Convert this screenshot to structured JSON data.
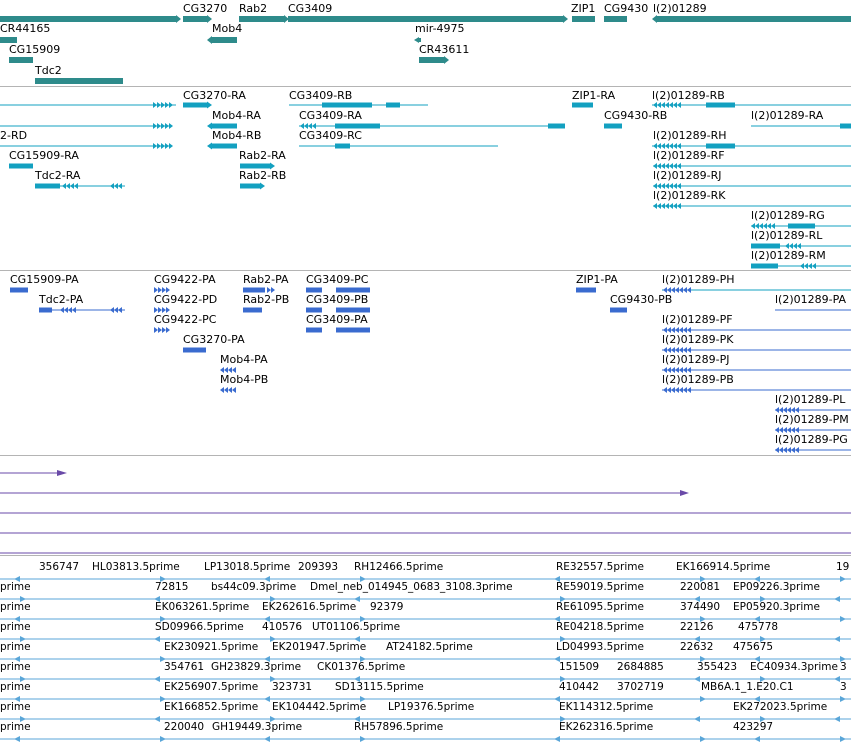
{
  "colors": {
    "gene": "#2e8b8b",
    "transcript": "#13a0c0",
    "protein": "#3a6bcf",
    "alignment": "#6a4aa8",
    "est": "#5aa6d8",
    "separator": "#b4b4b4"
  },
  "tracks": {
    "genes": {
      "name": "genes-track",
      "labels": [
        "CG3270",
        "Rab2",
        "CG3409",
        "ZIP1",
        "CG9430",
        "l(2)01289",
        "CR44165",
        "Mob4",
        "mir-4975",
        "CG15909",
        "CR43611",
        "Tdc2"
      ]
    },
    "transcripts": {
      "name": "transcripts-track",
      "labels": [
        "CG3270-RA",
        "CG3409-RB",
        "ZIP1-RA",
        "l(2)01289-RB",
        "Mob4-RA",
        "CG3409-RA",
        "CG9430-RB",
        "l(2)01289-RA",
        "2-RD",
        "Mob4-RB",
        "CG3409-RC",
        "l(2)01289-RH",
        "CG15909-RA",
        "Rab2-RA",
        "l(2)01289-RF",
        "Tdc2-RA",
        "Rab2-RB",
        "l(2)01289-RJ",
        "l(2)01289-RK",
        "l(2)01289-RG",
        "l(2)01289-RL",
        "l(2)01289-RM"
      ]
    },
    "proteins": {
      "name": "proteins-track",
      "labels": [
        "CG15909-PA",
        "CG9422-PA",
        "Rab2-PA",
        "CG3409-PC",
        "ZIP1-PA",
        "l(2)01289-PH",
        "Tdc2-PA",
        "CG9422-PD",
        "Rab2-PB",
        "CG3409-PB",
        "CG9430-PB",
        "l(2)01289-PA",
        "CG9422-PC",
        "CG3409-PA",
        "l(2)01289-PF",
        "CG3270-PA",
        "l(2)01289-PK",
        "Mob4-PA",
        "l(2)01289-PJ",
        "Mob4-PB",
        "l(2)01289-PB",
        "l(2)01289-PL",
        "l(2)01289-PM",
        "l(2)01289-PG"
      ]
    },
    "ests": {
      "name": "est-track",
      "labels": [
        "356747",
        "HL03813.5prime",
        "LP13018.5prime",
        "209393",
        "RH12466.5prime",
        "RE32557.5prime",
        "EK166914.5prime",
        "19",
        "prime",
        "72815",
        "bs44c09.3prime",
        "Dmel_neb_014945_0683_3108.3prime",
        "RE59019.5prime",
        "220081",
        "EP09226.3prime",
        "prime",
        "EK063261.5prime",
        "EK262616.5prime",
        "92379",
        "RE61095.5prime",
        "374490",
        "EP05920.3prime",
        "prime",
        "SD09966.5prime",
        "410576",
        "UT01106.5prime",
        "RE04218.5prime",
        "22126",
        "475778",
        "prime",
        "EK230921.5prime",
        "EK201947.5prime",
        "AT24182.5prime",
        "LD04993.5prime",
        "22632",
        "475675",
        "prime",
        "354761",
        "GH23829.3prime",
        "CK01376.5prime",
        "151509",
        "2684885",
        "355423",
        "EC40934.3prime",
        "3",
        "prime",
        "EK256907.5prime",
        "323731",
        "SD13115.5prime",
        "410442",
        "3702719",
        "MB6A.1_1.E20.C1",
        "3",
        "prime",
        "EK166852.5prime",
        "EK104442.5prime",
        "LP19376.5prime",
        "EK114312.5prime",
        "EK272023.5prime",
        "prime",
        "220040",
        "GH19449.3prime",
        "RH57896.5prime",
        "EK262316.5prime",
        "423297"
      ]
    }
  }
}
